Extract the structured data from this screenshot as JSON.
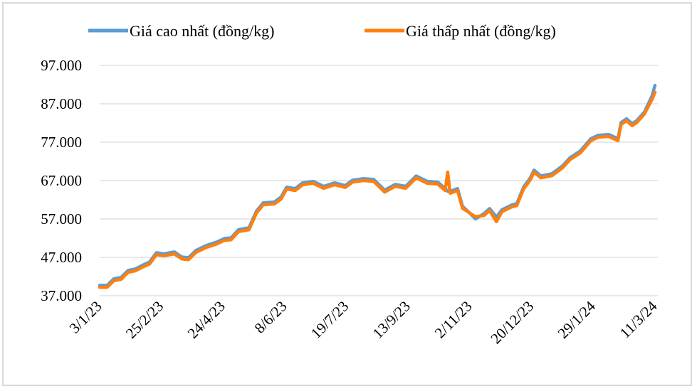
{
  "chart_data": {
    "type": "line",
    "title": "",
    "xlabel": "",
    "ylabel": "",
    "x_tick_labels": [
      "3/1/23",
      "25/2/23",
      "24/4/23",
      "8/6/23",
      "19/7/23",
      "13/9/23",
      "2/11/23",
      "20/12/23",
      "29/1/24",
      "11/3/24"
    ],
    "y_ticks": [
      37000,
      47000,
      57000,
      67000,
      77000,
      87000,
      97000
    ],
    "y_tick_labels": [
      "37.000",
      "47.000",
      "57.000",
      "67.000",
      "77.000",
      "87.000",
      "97.000"
    ],
    "ylim": [
      37000,
      97000
    ],
    "grid": "horizontal",
    "legend_position": "top",
    "x": [
      0,
      0.12,
      0.23,
      0.35,
      0.46,
      0.58,
      0.69,
      0.81,
      0.92,
      1.04,
      1.21,
      1.33,
      1.44,
      1.56,
      1.73,
      1.9,
      2.02,
      2.13,
      2.25,
      2.42,
      2.54,
      2.65,
      2.83,
      2.94,
      3.03,
      3.17,
      3.29,
      3.46,
      3.63,
      3.81,
      3.98,
      4.1,
      4.27,
      4.44,
      4.62,
      4.79,
      4.96,
      5.13,
      5.31,
      5.48,
      5.6,
      5.64,
      5.68,
      5.8,
      5.88,
      6.0,
      6.09,
      6.23,
      6.32,
      6.43,
      6.52,
      6.67,
      6.76,
      6.87,
      6.98,
      7.04,
      7.15,
      7.33,
      7.5,
      7.62,
      7.79,
      7.96,
      8.08,
      8.25,
      8.4,
      8.45,
      8.54,
      8.63,
      8.71,
      8.83,
      8.95,
      9.0
    ],
    "series": [
      {
        "name": "Giá cao nhất (đồng/kg)",
        "color": "#5B9BD5",
        "values": [
          39700,
          39700,
          41400,
          41800,
          43600,
          44000,
          44900,
          45800,
          48200,
          47900,
          48400,
          47100,
          46900,
          48800,
          50100,
          51000,
          51900,
          52100,
          54200,
          54700,
          59000,
          61200,
          61400,
          62700,
          65300,
          64900,
          66400,
          66800,
          65500,
          66400,
          65700,
          67100,
          67500,
          67300,
          64500,
          66000,
          65500,
          68200,
          66800,
          66600,
          64900,
          64200,
          64200,
          64900,
          60300,
          58500,
          57000,
          58400,
          59700,
          57500,
          59400,
          60600,
          61000,
          65300,
          67700,
          69700,
          68200,
          68800,
          70800,
          72900,
          74700,
          77900,
          78800,
          79000,
          77900,
          82100,
          83100,
          81800,
          82700,
          84900,
          89000,
          91800
        ]
      },
      {
        "name": "Giá thấp nhất (đồng/kg)",
        "color": "#FF7F0E",
        "values": [
          39200,
          39200,
          40900,
          41300,
          43100,
          43500,
          44400,
          45300,
          47700,
          47400,
          47900,
          46600,
          46400,
          48300,
          49600,
          50500,
          51400,
          51600,
          53700,
          54200,
          58500,
          60700,
          60900,
          62200,
          64800,
          64400,
          65900,
          66300,
          65000,
          65900,
          65200,
          66600,
          67000,
          66800,
          64000,
          65500,
          65000,
          67700,
          66300,
          66100,
          64400,
          69200,
          63700,
          64400,
          59800,
          58500,
          57600,
          57900,
          59200,
          56300,
          58900,
          60100,
          60500,
          64800,
          67200,
          69200,
          67700,
          68300,
          70300,
          72400,
          74200,
          77400,
          78300,
          78500,
          77400,
          81600,
          82600,
          81300,
          82200,
          84400,
          88100,
          90000
        ]
      }
    ]
  }
}
